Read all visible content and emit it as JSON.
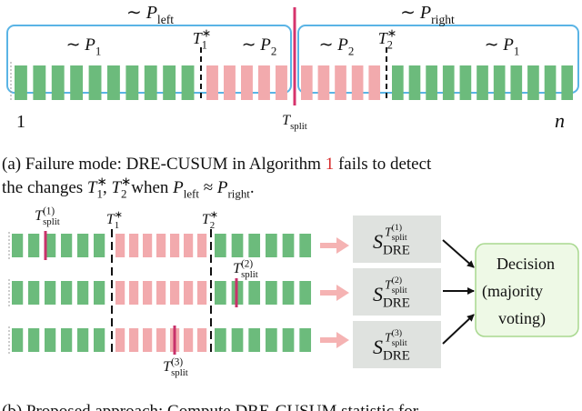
{
  "panel_a": {
    "dist_left": {
      "prefix": "∼ ",
      "main": "P",
      "sub": "left"
    },
    "dist_right": {
      "prefix": "∼ ",
      "main": "P",
      "sub": "right"
    },
    "segments": [
      {
        "prefix": "∼ ",
        "main": "P",
        "sub": "1"
      },
      {
        "prefix": "∼ ",
        "main": "P",
        "sub": "2"
      },
      {
        "prefix": "∼ ",
        "main": "P",
        "sub": "2"
      },
      {
        "prefix": "∼ ",
        "main": "P",
        "sub": "1"
      }
    ],
    "changes": [
      {
        "main": "T",
        "sup": "∗",
        "sub": "1"
      },
      {
        "main": "T",
        "sup": "∗",
        "sub": "2"
      }
    ],
    "split": {
      "main": "T",
      "sub": "split"
    },
    "start": "1",
    "end": "n"
  },
  "caption_a": {
    "line1": [
      "(a) Failure mode: DRE-CUSUM in Algorithm ",
      "1",
      " fails to detect"
    ],
    "line2": [
      "the changes ",
      {
        "main": "T",
        "sup": "∗",
        "sub": "1"
      },
      ", ",
      {
        "main": "T",
        "sup": "∗",
        "sub": "2"
      },
      " when ",
      {
        "main": "P",
        "sub": "left"
      },
      " ≈ ",
      {
        "main": "P",
        "sub": "right"
      },
      "."
    ]
  },
  "panel_b": {
    "changes": [
      {
        "main": "T",
        "sup": "∗",
        "sub": "1"
      },
      {
        "main": "T",
        "sup": "∗",
        "sub": "2"
      }
    ],
    "splits": [
      {
        "main": "T",
        "sup": "(1)",
        "sub": "split"
      },
      {
        "main": "T",
        "sup": "(2)",
        "sub": "split"
      },
      {
        "main": "T",
        "sup": "(3)",
        "sub": "split"
      }
    ],
    "statistics": [
      {
        "main": "S",
        "sub": "DRE",
        "sup_main": "T",
        "sup_sup": "(1)",
        "sup_sub": "split"
      },
      {
        "main": "S",
        "sub": "DRE",
        "sup_main": "T",
        "sup_sup": "(2)",
        "sup_sub": "split"
      },
      {
        "main": "S",
        "sub": "DRE",
        "sup_main": "T",
        "sup_sup": "(3)",
        "sup_sub": "split"
      }
    ],
    "decision": [
      "Decision",
      "(majority",
      "voting)"
    ]
  },
  "caption_b": "(b) Proposed approach: Compute DRE-CUSUM statistic for"
}
